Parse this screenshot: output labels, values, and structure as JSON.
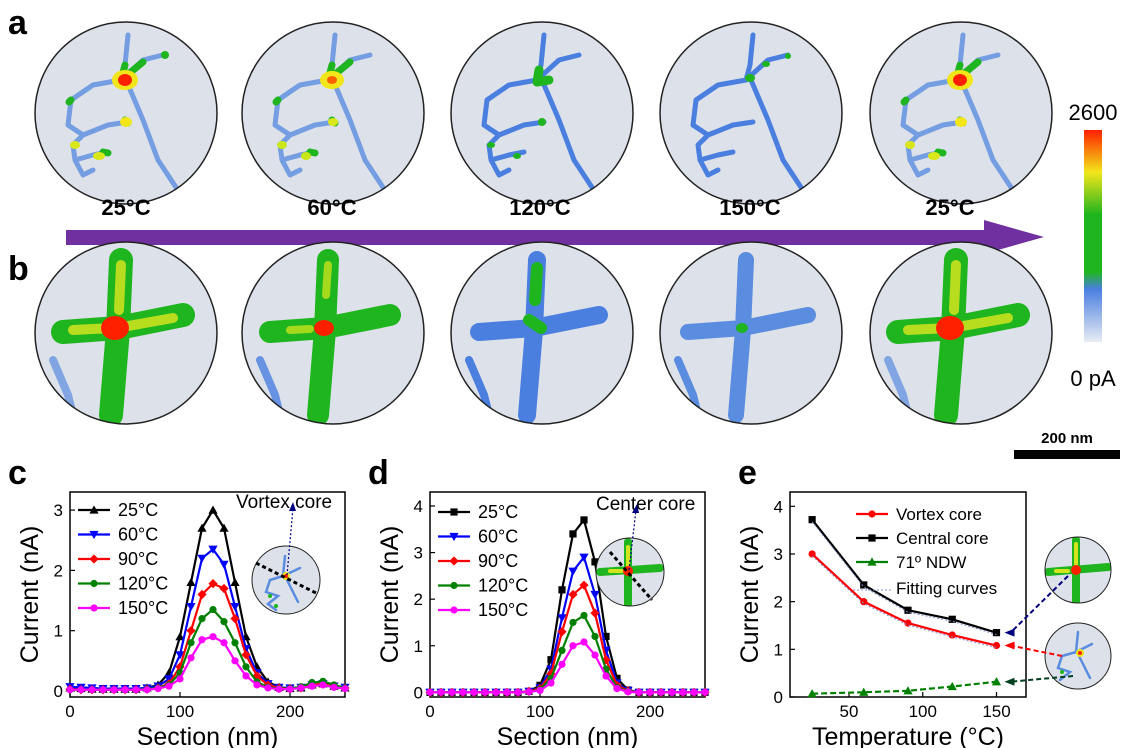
{
  "panel_letters": {
    "a": "a",
    "b": "b",
    "c": "c",
    "d": "d",
    "e": "e"
  },
  "row_a_temps": [
    "25°C",
    "60°C",
    "120°C",
    "150°C",
    "25°C"
  ],
  "colorbar": {
    "max_label": "2600",
    "min_label": "0 pA",
    "colors": [
      "#e8ecf4",
      "#4a7fe0",
      "#1fb51f",
      "#f2e61a",
      "#ff2000"
    ]
  },
  "scalebar": {
    "label": "200 nm"
  },
  "colors": {
    "arrow": "#7030a0",
    "black": "#000000",
    "blue": "#0000ff",
    "red": "#ff0000",
    "green": "#008000",
    "magenta": "#ff00ff",
    "disk": "#dde1ea"
  },
  "chart_data": [
    {
      "type": "line",
      "panel": "c",
      "xlabel": "Section (nm)",
      "ylabel": "Current (nA)",
      "xlim": [
        0,
        250
      ],
      "ylim": [
        -0.1,
        3.3
      ],
      "xticks": [
        0,
        100,
        200
      ],
      "yticks": [
        0,
        1,
        2,
        3
      ],
      "legend_position": "top-left",
      "annotation": "Vortex core",
      "x": [
        0,
        10,
        20,
        30,
        40,
        50,
        60,
        70,
        80,
        90,
        100,
        110,
        120,
        130,
        140,
        150,
        160,
        170,
        180,
        190,
        200,
        210,
        220,
        230,
        240,
        250
      ],
      "series": [
        {
          "name": "25°C",
          "color": "#000000",
          "marker": "triangle-up",
          "values": [
            0.05,
            0.04,
            0.03,
            0.03,
            0.03,
            0.03,
            0.03,
            0.05,
            0.1,
            0.3,
            0.9,
            1.8,
            2.7,
            3.0,
            2.7,
            1.8,
            0.9,
            0.4,
            0.15,
            0.06,
            0.04,
            0.05,
            0.1,
            0.12,
            0.08,
            0.05
          ]
        },
        {
          "name": "60°C",
          "color": "#0000ff",
          "marker": "triangle-down",
          "values": [
            0.07,
            0.06,
            0.05,
            0.04,
            0.04,
            0.04,
            0.04,
            0.05,
            0.08,
            0.2,
            0.6,
            1.4,
            2.2,
            2.35,
            2.1,
            1.4,
            0.7,
            0.3,
            0.12,
            0.06,
            0.05,
            0.06,
            0.1,
            0.12,
            0.08,
            0.06
          ]
        },
        {
          "name": "90°C",
          "color": "#ff0000",
          "marker": "diamond",
          "values": [
            0.03,
            0.02,
            0.02,
            0.02,
            0.02,
            0.02,
            0.02,
            0.03,
            0.05,
            0.12,
            0.4,
            1.0,
            1.6,
            1.78,
            1.7,
            1.2,
            0.6,
            0.25,
            0.1,
            0.05,
            0.04,
            0.05,
            0.1,
            0.12,
            0.08,
            0.05
          ]
        },
        {
          "name": "120°C",
          "color": "#008000",
          "marker": "circle",
          "values": [
            0.02,
            0.02,
            0.02,
            0.02,
            0.02,
            0.02,
            0.02,
            0.03,
            0.05,
            0.1,
            0.3,
            0.8,
            1.2,
            1.35,
            1.15,
            0.8,
            0.4,
            0.15,
            0.06,
            0.04,
            0.04,
            0.07,
            0.14,
            0.16,
            0.1,
            0.05
          ]
        },
        {
          "name": "150°C",
          "color": "#ff00ff",
          "marker": "circle",
          "values": [
            0.02,
            0.02,
            0.02,
            0.02,
            0.02,
            0.02,
            0.02,
            0.02,
            0.04,
            0.08,
            0.2,
            0.55,
            0.85,
            0.9,
            0.8,
            0.5,
            0.25,
            0.1,
            0.05,
            0.03,
            0.03,
            0.05,
            0.08,
            0.1,
            0.06,
            0.04
          ]
        }
      ]
    },
    {
      "type": "line",
      "panel": "d",
      "xlabel": "Section (nm)",
      "ylabel": "Current (nA)",
      "xlim": [
        0,
        250
      ],
      "ylim": [
        -0.1,
        4.3
      ],
      "xticks": [
        0,
        100,
        200
      ],
      "yticks": [
        0,
        1,
        2,
        3,
        4
      ],
      "legend_position": "top-left",
      "annotation": "Center core",
      "x": [
        0,
        10,
        20,
        30,
        40,
        50,
        60,
        70,
        80,
        90,
        100,
        110,
        120,
        130,
        140,
        150,
        160,
        170,
        180,
        190,
        200,
        210,
        220,
        230,
        240,
        250
      ],
      "series": [
        {
          "name": "25°C",
          "color": "#000000",
          "marker": "square",
          "values": [
            0,
            0,
            0,
            0,
            0,
            0,
            0,
            0,
            0,
            0.02,
            0.15,
            0.7,
            2.2,
            3.4,
            3.7,
            2.8,
            1.2,
            0.3,
            0.05,
            0,
            0,
            0,
            0,
            0,
            0,
            0
          ]
        },
        {
          "name": "60°C",
          "color": "#0000ff",
          "marker": "triangle-down",
          "values": [
            0,
            0,
            0,
            0,
            0,
            0,
            0,
            0,
            0,
            0.02,
            0.1,
            0.5,
            1.6,
            2.6,
            2.9,
            2.1,
            0.9,
            0.2,
            0.04,
            0,
            0,
            0,
            0,
            0,
            0,
            0
          ]
        },
        {
          "name": "90°C",
          "color": "#ff0000",
          "marker": "diamond",
          "values": [
            0,
            0,
            0,
            0,
            0,
            0,
            0,
            0,
            0,
            0.02,
            0.08,
            0.4,
            1.3,
            2.1,
            2.3,
            1.7,
            0.7,
            0.15,
            0.03,
            0,
            0,
            0,
            0,
            0,
            0,
            0
          ]
        },
        {
          "name": "120°C",
          "color": "#008000",
          "marker": "circle",
          "values": [
            0,
            0,
            0,
            0,
            0,
            0,
            0,
            0,
            0,
            0.01,
            0.06,
            0.3,
            0.9,
            1.5,
            1.65,
            1.2,
            0.5,
            0.1,
            0.02,
            0,
            0,
            0,
            0,
            0,
            0,
            0
          ]
        },
        {
          "name": "150°C",
          "color": "#ff00ff",
          "marker": "circle",
          "values": [
            0,
            0,
            0,
            0,
            0,
            0,
            0,
            0,
            0,
            0.01,
            0.04,
            0.2,
            0.6,
            1.0,
            1.08,
            0.8,
            0.35,
            0.08,
            0.01,
            0,
            0,
            0,
            0,
            0,
            0,
            0
          ]
        }
      ]
    },
    {
      "type": "line",
      "panel": "e",
      "xlabel": "Temperature (°C)",
      "ylabel": "Current (nA)",
      "xlim": [
        10,
        170
      ],
      "ylim": [
        0,
        4.3
      ],
      "xticks": [
        50,
        100,
        150
      ],
      "yticks": [
        0,
        1,
        2,
        3,
        4
      ],
      "legend_position": "top-right",
      "fit_label": "Fitting curves",
      "x": [
        25,
        60,
        90,
        120,
        150
      ],
      "series": [
        {
          "name": "Vortex core",
          "color": "#ff0000",
          "marker": "circle",
          "values": [
            3.0,
            2.0,
            1.55,
            1.3,
            1.08
          ]
        },
        {
          "name": "Central core",
          "color": "#000000",
          "marker": "square",
          "values": [
            3.72,
            2.35,
            1.82,
            1.63,
            1.35
          ]
        },
        {
          "name": "71º NDW",
          "color": "#008000",
          "marker": "triangle-up",
          "values": [
            0.07,
            0.1,
            0.13,
            0.22,
            0.32
          ]
        }
      ]
    }
  ]
}
